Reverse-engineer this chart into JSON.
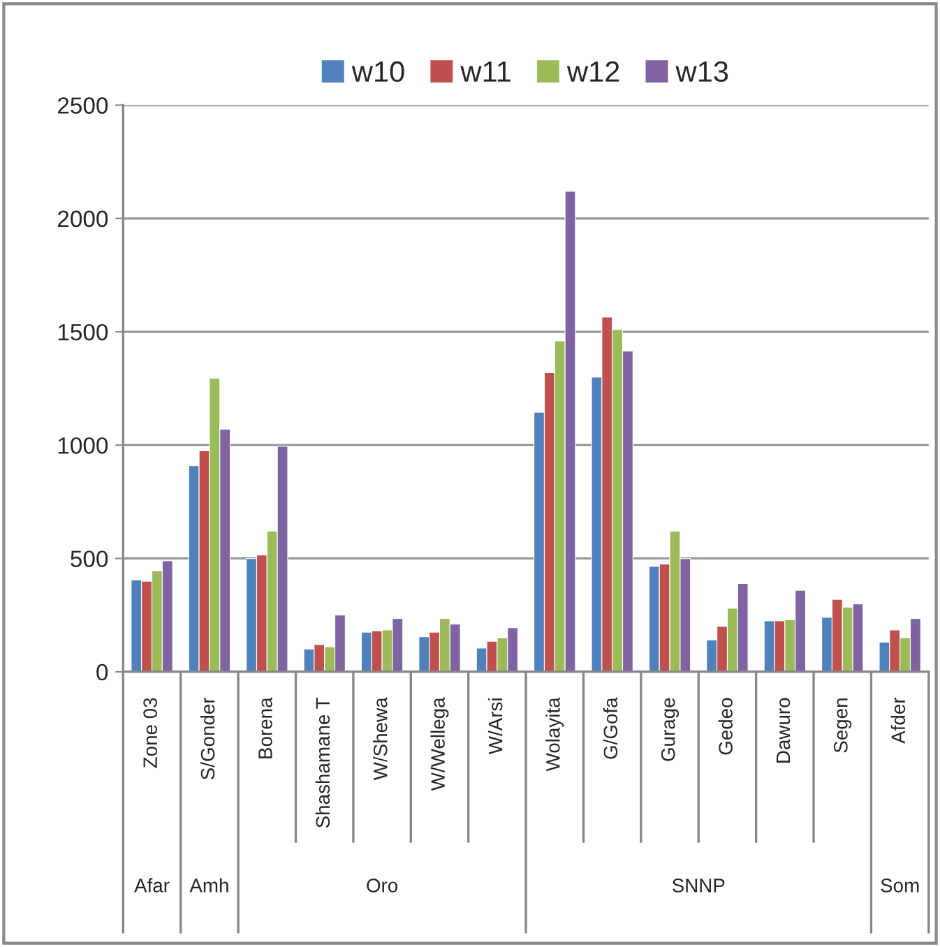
{
  "chart_data": {
    "type": "bar",
    "categories": [
      "Zone 03",
      "S/Gonder",
      "Borena",
      "Shashamane T",
      "W/Shewa",
      "W/Wellega",
      "W/Arsi",
      "Wolayita",
      "G/Gofa",
      "Gurage",
      "Gedeo",
      "Dawuro",
      "Segen",
      "Afder"
    ],
    "series": [
      {
        "name": "w10",
        "color": "#4f81bd",
        "values": [
          405,
          910,
          500,
          100,
          175,
          155,
          105,
          1145,
          1300,
          465,
          140,
          225,
          240,
          130
        ]
      },
      {
        "name": "w11",
        "color": "#c0504d",
        "values": [
          400,
          975,
          515,
          120,
          180,
          175,
          135,
          1320,
          1565,
          475,
          200,
          225,
          320,
          185
        ]
      },
      {
        "name": "w12",
        "color": "#9bbb59",
        "values": [
          445,
          1295,
          620,
          110,
          185,
          235,
          150,
          1460,
          1510,
          620,
          280,
          230,
          285,
          150
        ]
      },
      {
        "name": "w13",
        "color": "#8064a2",
        "values": [
          490,
          1070,
          995,
          250,
          235,
          210,
          195,
          2120,
          1415,
          500,
          390,
          360,
          300,
          235
        ]
      }
    ],
    "annotations": [
      "Afar",
      "Amh",
      "Oro",
      "SNNP",
      "Som"
    ],
    "ylim": [
      0,
      2500
    ],
    "yticks": [
      0,
      500,
      1000,
      1500,
      2000,
      2500
    ],
    "grid": "y",
    "legend": "top"
  }
}
